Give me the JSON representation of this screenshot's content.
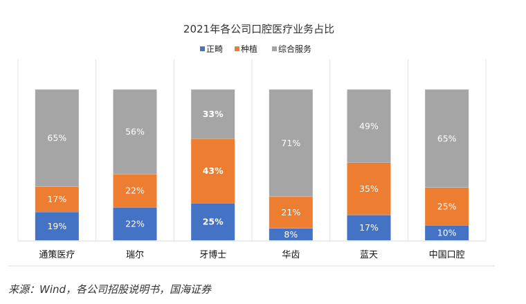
{
  "chart_data": {
    "type": "bar",
    "stacked": true,
    "title": "2021年各公司口腔医疗业务占比",
    "categories": [
      "通策医疗",
      "瑞尔",
      "牙博士",
      "华齿",
      "蓝天",
      "中国口腔"
    ],
    "series": [
      {
        "name": "正畸",
        "color": "#4472C4",
        "values": [
          19,
          22,
          25,
          8,
          17,
          10
        ],
        "labels": [
          "19%",
          "22%",
          "25%",
          "8%",
          "17%",
          "10%"
        ]
      },
      {
        "name": "种植",
        "color": "#ED7D31",
        "values": [
          17,
          22,
          43,
          21,
          35,
          25
        ],
        "labels": [
          "17%",
          "22%",
          "43%",
          "21%",
          "35%",
          "25%"
        ]
      },
      {
        "name": "综合服务",
        "color": "#A5A5A5",
        "values": [
          65,
          56,
          33,
          71,
          49,
          65
        ],
        "labels": [
          "65%",
          "56%",
          "33%",
          "71%",
          "49%",
          "65%"
        ]
      }
    ],
    "legend_position": "top",
    "grid": "vertical separators",
    "xlabel": "",
    "ylabel": ""
  },
  "source": "来源：Wind，各公司招股说明书，国海证券"
}
